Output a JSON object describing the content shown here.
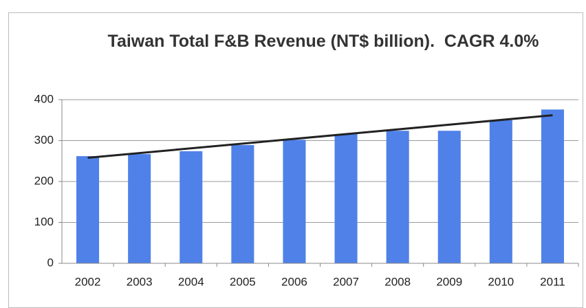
{
  "chart_data": {
    "type": "bar",
    "title": "Taiwan Total F&B Revenue (NT$ billion).  CAGR 4.0%",
    "categories": [
      "2002",
      "2003",
      "2004",
      "2005",
      "2006",
      "2007",
      "2008",
      "2009",
      "2010",
      "2011"
    ],
    "values": [
      262,
      267,
      274,
      289,
      302,
      316,
      324,
      324,
      350,
      376
    ],
    "color": "#4f81e8",
    "trendline": [
      258,
      362
    ],
    "trendline_color": "#222222",
    "ylim": [
      0,
      400
    ],
    "yticks": [
      0,
      100,
      200,
      300,
      400
    ],
    "grid": true
  }
}
